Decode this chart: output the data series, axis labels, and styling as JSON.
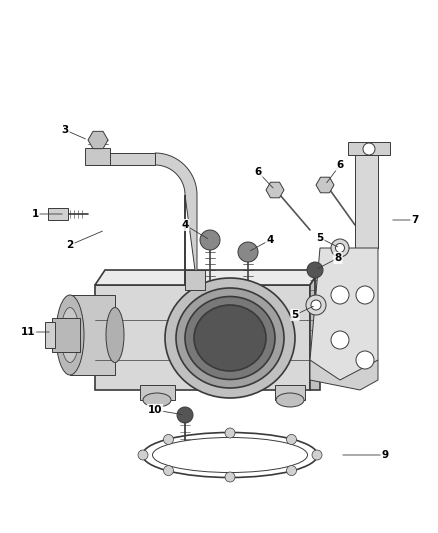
{
  "background_color": "#ffffff",
  "fig_width": 4.38,
  "fig_height": 5.33,
  "dpi": 100,
  "line_color": "#3a3a3a",
  "label_fontsize": 7.5,
  "thin_lw": 0.7,
  "thick_lw": 1.2,
  "fill_light": "#e8e8e8",
  "fill_mid": "#d0d0d0",
  "fill_dark": "#b8b8b8",
  "fill_very_dark": "#888888"
}
